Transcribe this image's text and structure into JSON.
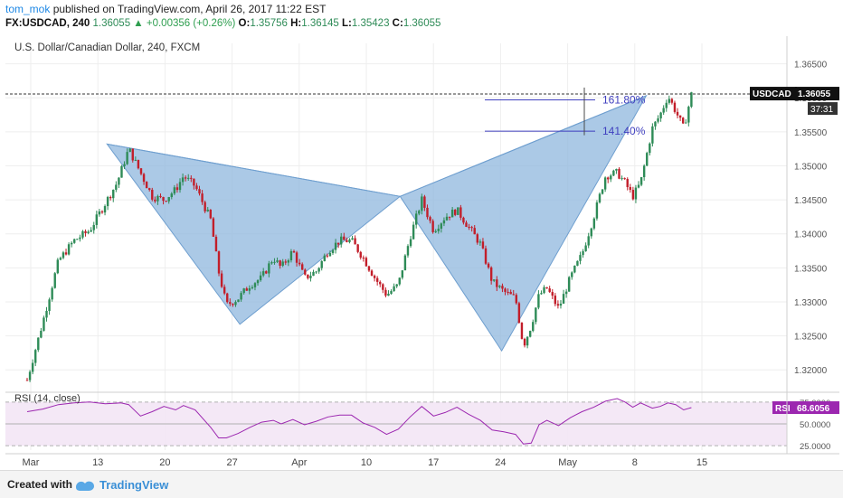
{
  "header": {
    "author": "tom_mok",
    "published": "published on TradingView.com, April 26, 2017 11:22 EST",
    "symbol": "FX:USDCAD, 240",
    "last": "1.36055",
    "change": "▲ +0.00356 (+0.26%)",
    "ohlc": {
      "O": "1.35756",
      "H": "1.36145",
      "L": "1.35423",
      "C": "1.36055"
    }
  },
  "footer": {
    "created_with": "Created with",
    "brand": "TradingView"
  },
  "colors": {
    "up": "#2e8b57",
    "down": "#c21e2a",
    "pattern": "#8fb7de",
    "rsi": "#9c27b0",
    "fib": "#3f3fbf"
  },
  "chart_data": [
    {
      "type": "candlestick",
      "title": "U.S. Dollar/Canadian Dollar, 240, FXCM",
      "ylim": [
        1.3175,
        1.368
      ],
      "price_ticks": [
        "1.36500",
        "1.36000",
        "1.35500",
        "1.35000",
        "1.34500",
        "1.34000",
        "1.33500",
        "1.33000",
        "1.32500",
        "1.32000"
      ],
      "x_labels": [
        "Mar",
        "13",
        "20",
        "27",
        "Apr",
        "10",
        "17",
        "24",
        "May",
        "8",
        "15"
      ],
      "last_price_label": "USDCAD",
      "last_price": "1.36055",
      "countdown": "37:31",
      "fib_levels": [
        {
          "label": "161.80%",
          "value": 1.3597
        },
        {
          "label": "141.40%",
          "value": 1.3551
        }
      ],
      "pattern_points": [
        {
          "t": 0.13,
          "p": 1.3532
        },
        {
          "t": 0.3,
          "p": 1.3267
        },
        {
          "t": 0.505,
          "p": 1.3455
        },
        {
          "t": 0.635,
          "p": 1.3228
        },
        {
          "t": 0.82,
          "p": 1.3603
        }
      ],
      "price_path": [
        [
          0.0,
          1.3185
        ],
        [
          0.02,
          1.327
        ],
        [
          0.04,
          1.336
        ],
        [
          0.06,
          1.339
        ],
        [
          0.08,
          1.3405
        ],
        [
          0.1,
          1.3445
        ],
        [
          0.115,
          1.3475
        ],
        [
          0.13,
          1.3525
        ],
        [
          0.145,
          1.349
        ],
        [
          0.16,
          1.3455
        ],
        [
          0.175,
          1.345
        ],
        [
          0.19,
          1.3465
        ],
        [
          0.2,
          1.3485
        ],
        [
          0.215,
          1.347
        ],
        [
          0.235,
          1.342
        ],
        [
          0.245,
          1.3345
        ],
        [
          0.255,
          1.3295
        ],
        [
          0.27,
          1.3305
        ],
        [
          0.285,
          1.3325
        ],
        [
          0.3,
          1.3335
        ],
        [
          0.315,
          1.3365
        ],
        [
          0.325,
          1.335
        ],
        [
          0.34,
          1.3375
        ],
        [
          0.355,
          1.3335
        ],
        [
          0.37,
          1.3345
        ],
        [
          0.385,
          1.3375
        ],
        [
          0.4,
          1.339
        ],
        [
          0.415,
          1.339
        ],
        [
          0.43,
          1.3365
        ],
        [
          0.445,
          1.3335
        ],
        [
          0.46,
          1.331
        ],
        [
          0.475,
          1.3325
        ],
        [
          0.49,
          1.3395
        ],
        [
          0.505,
          1.345
        ],
        [
          0.52,
          1.3405
        ],
        [
          0.535,
          1.3425
        ],
        [
          0.55,
          1.3435
        ],
        [
          0.565,
          1.341
        ],
        [
          0.58,
          1.3385
        ],
        [
          0.595,
          1.333
        ],
        [
          0.61,
          1.3315
        ],
        [
          0.625,
          1.3305
        ],
        [
          0.635,
          1.3235
        ],
        [
          0.645,
          1.3265
        ],
        [
          0.655,
          1.331
        ],
        [
          0.665,
          1.332
        ],
        [
          0.68,
          1.329
        ],
        [
          0.695,
          1.3335
        ],
        [
          0.71,
          1.337
        ],
        [
          0.725,
          1.3425
        ],
        [
          0.74,
          1.3485
        ],
        [
          0.755,
          1.349
        ],
        [
          0.765,
          1.3475
        ],
        [
          0.775,
          1.3455
        ],
        [
          0.785,
          1.3475
        ],
        [
          0.8,
          1.3555
        ],
        [
          0.81,
          1.3575
        ],
        [
          0.82,
          1.3603
        ],
        [
          0.83,
          1.358
        ],
        [
          0.84,
          1.3555
        ],
        [
          0.85,
          1.3605
        ]
      ]
    },
    {
      "type": "line",
      "title": "RSI (14, close)",
      "series_label": "RSI",
      "value": "68.6056",
      "ylim": [
        20,
        80
      ],
      "levels": [
        75,
        50,
        25
      ],
      "level_labels": [
        "75.0000",
        "50.0000",
        "25.0000"
      ],
      "path": [
        [
          0.0,
          64
        ],
        [
          0.02,
          67
        ],
        [
          0.04,
          72
        ],
        [
          0.06,
          74
        ],
        [
          0.08,
          75
        ],
        [
          0.1,
          73
        ],
        [
          0.12,
          74
        ],
        [
          0.13,
          72
        ],
        [
          0.145,
          59
        ],
        [
          0.16,
          64
        ],
        [
          0.175,
          70
        ],
        [
          0.19,
          66
        ],
        [
          0.2,
          71
        ],
        [
          0.215,
          66
        ],
        [
          0.235,
          46
        ],
        [
          0.245,
          34
        ],
        [
          0.255,
          34
        ],
        [
          0.27,
          39
        ],
        [
          0.285,
          46
        ],
        [
          0.3,
          52
        ],
        [
          0.315,
          54
        ],
        [
          0.325,
          50
        ],
        [
          0.34,
          55
        ],
        [
          0.355,
          49
        ],
        [
          0.37,
          53
        ],
        [
          0.385,
          58
        ],
        [
          0.4,
          60
        ],
        [
          0.415,
          60
        ],
        [
          0.43,
          51
        ],
        [
          0.445,
          46
        ],
        [
          0.46,
          38
        ],
        [
          0.475,
          44
        ],
        [
          0.49,
          58
        ],
        [
          0.505,
          70
        ],
        [
          0.52,
          59
        ],
        [
          0.535,
          63
        ],
        [
          0.55,
          69
        ],
        [
          0.565,
          61
        ],
        [
          0.58,
          54
        ],
        [
          0.595,
          43
        ],
        [
          0.61,
          41
        ],
        [
          0.625,
          38
        ],
        [
          0.635,
          27
        ],
        [
          0.645,
          28
        ],
        [
          0.655,
          49
        ],
        [
          0.665,
          54
        ],
        [
          0.68,
          48
        ],
        [
          0.695,
          57
        ],
        [
          0.71,
          64
        ],
        [
          0.725,
          69
        ],
        [
          0.74,
          76
        ],
        [
          0.755,
          79
        ],
        [
          0.765,
          75
        ],
        [
          0.775,
          69
        ],
        [
          0.785,
          74
        ],
        [
          0.8,
          68
        ],
        [
          0.81,
          70
        ],
        [
          0.82,
          74
        ],
        [
          0.83,
          72
        ],
        [
          0.84,
          66
        ],
        [
          0.85,
          68.6
        ]
      ]
    }
  ]
}
